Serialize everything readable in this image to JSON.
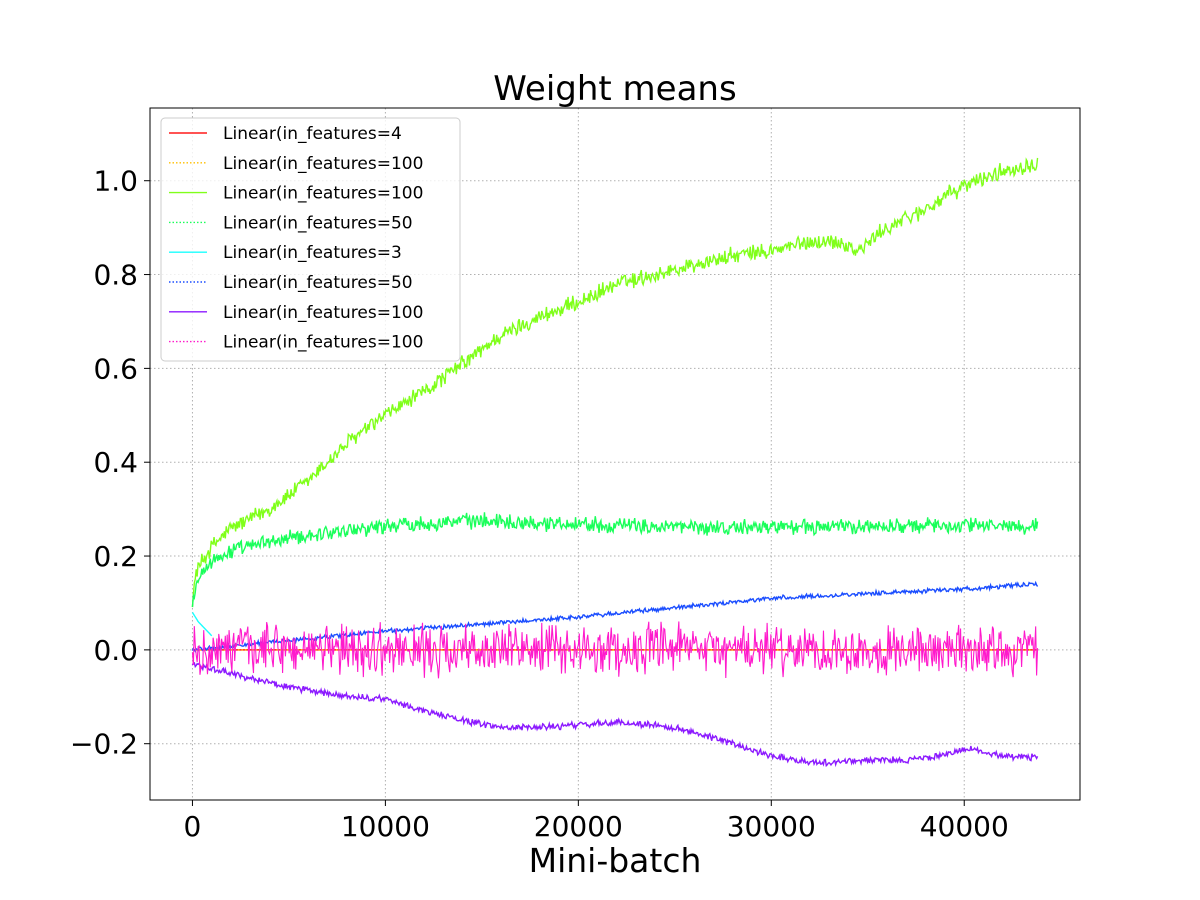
{
  "chart_data": {
    "type": "line",
    "title": "Weight means",
    "xlabel": "Mini-batch",
    "ylabel": "",
    "xlim": [
      -2200,
      46000
    ],
    "ylim": [
      -0.32,
      1.155
    ],
    "x_ticks": [
      0,
      10000,
      20000,
      30000,
      40000
    ],
    "y_ticks": [
      -0.2,
      0.0,
      0.2,
      0.4,
      0.6,
      0.8,
      1.0
    ],
    "x_tick_labels": [
      "0",
      "10000",
      "20000",
      "30000",
      "40000"
    ],
    "y_tick_labels": [
      "−0.2",
      "0.0",
      "0.2",
      "0.4",
      "0.6",
      "0.8",
      "1.0"
    ],
    "grid": true,
    "legend_position": "upper-left",
    "series": [
      {
        "name": "Linear(in_features=4",
        "color": "#ff1a1a",
        "style": "solid",
        "x": [
          0,
          5000,
          10000,
          20000,
          30000,
          40000,
          43800
        ],
        "y": [
          0.0,
          0.0,
          0.0,
          0.0,
          0.0,
          0.0,
          0.0
        ],
        "noise": 0.0
      },
      {
        "name": "Linear(in_features=100",
        "color": "#ffbf00",
        "style": "dotted",
        "x": [
          0,
          5000,
          10000,
          20000,
          30000,
          40000,
          43800
        ],
        "y": [
          0.0,
          0.0,
          0.0,
          0.0,
          0.0,
          0.0,
          0.0
        ],
        "noise": 0.0
      },
      {
        "name": "Linear(in_features=100",
        "color": "#80ff1a",
        "style": "solid",
        "x": [
          0,
          200,
          1000,
          2000,
          4000,
          6000,
          8000,
          10000,
          12000,
          14000,
          16000,
          18000,
          20000,
          22000,
          24000,
          26000,
          28000,
          30000,
          32000,
          33500,
          34500,
          36000,
          38000,
          40000,
          42000,
          43800
        ],
        "y": [
          0.1,
          0.17,
          0.22,
          0.26,
          0.3,
          0.36,
          0.44,
          0.5,
          0.55,
          0.61,
          0.67,
          0.71,
          0.74,
          0.78,
          0.8,
          0.82,
          0.84,
          0.85,
          0.87,
          0.87,
          0.85,
          0.9,
          0.94,
          0.99,
          1.02,
          1.04
        ],
        "noise": 0.015
      },
      {
        "name": "Linear(in_features=50",
        "color": "#1aff5a",
        "style": "dotted",
        "x": [
          0,
          200,
          1000,
          2000,
          4000,
          6000,
          8000,
          10000,
          12000,
          14000,
          16000,
          18000,
          20000,
          22000,
          25000,
          28000,
          30000,
          33000,
          36000,
          40000,
          43800
        ],
        "y": [
          0.1,
          0.15,
          0.19,
          0.21,
          0.23,
          0.245,
          0.255,
          0.265,
          0.27,
          0.275,
          0.275,
          0.27,
          0.27,
          0.265,
          0.262,
          0.26,
          0.263,
          0.262,
          0.264,
          0.265,
          0.265
        ],
        "noise": 0.014
      },
      {
        "name": "Linear(in_features=3",
        "color": "#1affff",
        "style": "solid",
        "x": [
          0,
          300,
          1000
        ],
        "y": [
          0.08,
          0.06,
          0.03
        ],
        "noise": 0.0
      },
      {
        "name": "Linear(in_features=50",
        "color": "#1a4dff",
        "style": "dotted",
        "x": [
          0,
          5000,
          10000,
          15000,
          20000,
          25000,
          30000,
          35000,
          40000,
          43800
        ],
        "y": [
          0.0,
          0.02,
          0.04,
          0.055,
          0.07,
          0.09,
          0.11,
          0.12,
          0.13,
          0.14
        ],
        "noise": 0.004
      },
      {
        "name": "Linear(in_features=100",
        "color": "#8c1aff",
        "style": "solid",
        "x": [
          0,
          2000,
          5000,
          8000,
          10000,
          12000,
          14000,
          16000,
          18000,
          20000,
          22000,
          24000,
          26000,
          28000,
          30000,
          32000,
          33000,
          35000,
          37000,
          39000,
          40000,
          42000,
          43800
        ],
        "y": [
          -0.03,
          -0.05,
          -0.08,
          -0.1,
          -0.105,
          -0.13,
          -0.15,
          -0.165,
          -0.165,
          -0.16,
          -0.155,
          -0.16,
          -0.175,
          -0.2,
          -0.225,
          -0.24,
          -0.24,
          -0.235,
          -0.235,
          -0.225,
          -0.21,
          -0.225,
          -0.23
        ],
        "noise": 0.006
      },
      {
        "name": "Linear(in_features=100",
        "color": "#ff1acc",
        "style": "dotted",
        "x": [
          0,
          43800
        ],
        "y": [
          0.0,
          0.0
        ],
        "noise": 0.045
      }
    ]
  }
}
